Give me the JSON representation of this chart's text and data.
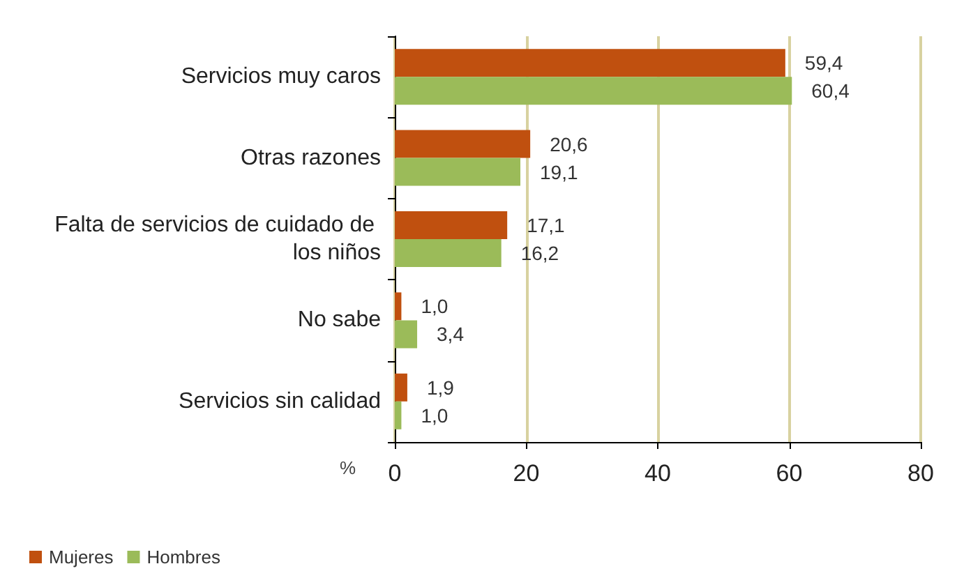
{
  "chart_data": {
    "type": "bar",
    "orientation": "horizontal",
    "categories": [
      "Servicios muy caros",
      "Otras razones",
      "Falta de servicios de cuidado de los niños",
      "No sabe",
      "Servicios sin calidad"
    ],
    "series": [
      {
        "name": "Mujeres",
        "color": "#c0500f",
        "values": [
          59.4,
          20.6,
          17.1,
          1.0,
          1.9
        ],
        "value_labels": [
          "59,4",
          "20,6",
          "17,1",
          "1,0",
          "1,9"
        ]
      },
      {
        "name": "Hombres",
        "color": "#9bbb59",
        "values": [
          60.4,
          19.1,
          16.2,
          3.4,
          1.0
        ],
        "value_labels": [
          "60,4",
          "19,1",
          "16,2",
          "3,4",
          "1,0"
        ]
      }
    ],
    "xlabel": "%",
    "xlim": [
      0,
      80
    ],
    "xticks": [
      0,
      20,
      40,
      60,
      80
    ],
    "grid": "x",
    "legend": "bottom left"
  }
}
